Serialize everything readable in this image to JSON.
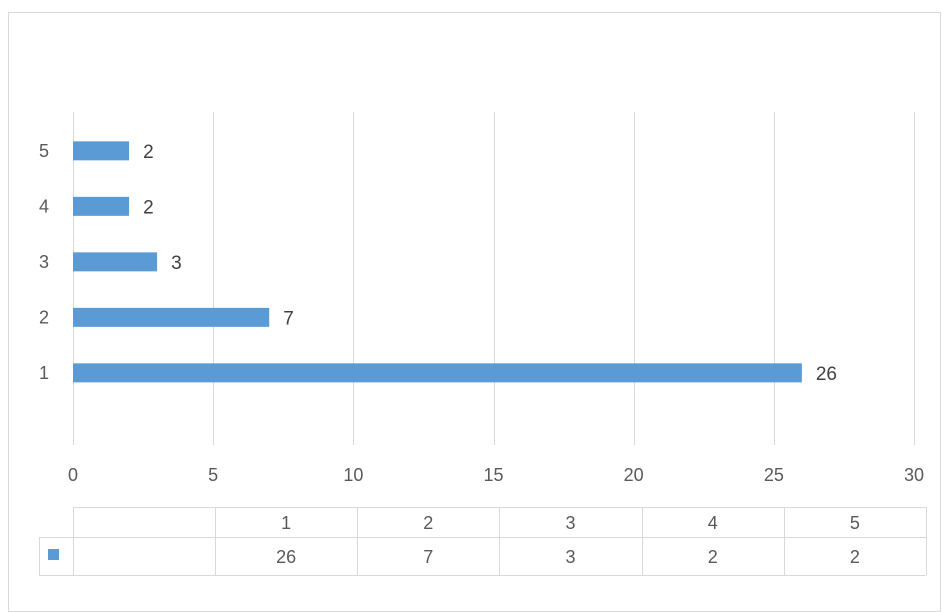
{
  "chart_data": {
    "type": "bar",
    "orientation": "horizontal",
    "categories": [
      "1",
      "2",
      "3",
      "4",
      "5"
    ],
    "series": [
      {
        "values": [
          26,
          7,
          3,
          2,
          2
        ],
        "color": "#5b9bd5"
      }
    ],
    "xlim": [
      0,
      30
    ],
    "x_ticks": [
      "0",
      "5",
      "10",
      "15",
      "20",
      "25",
      "30"
    ],
    "data_labels": [
      "26",
      "7",
      "3",
      "2",
      "2"
    ],
    "grid": "vertical",
    "title": "",
    "xlabel": "",
    "ylabel": "",
    "data_table": {
      "header": [
        "1",
        "2",
        "3",
        "4",
        "5"
      ],
      "rows": [
        {
          "legend_key_color": "#5b9bd5",
          "values": [
            "26",
            "7",
            "3",
            "2",
            "2"
          ]
        }
      ]
    }
  },
  "colors": {
    "bar": "#5b9bd5",
    "grid": "#d9d9d9",
    "text": "#595959"
  }
}
